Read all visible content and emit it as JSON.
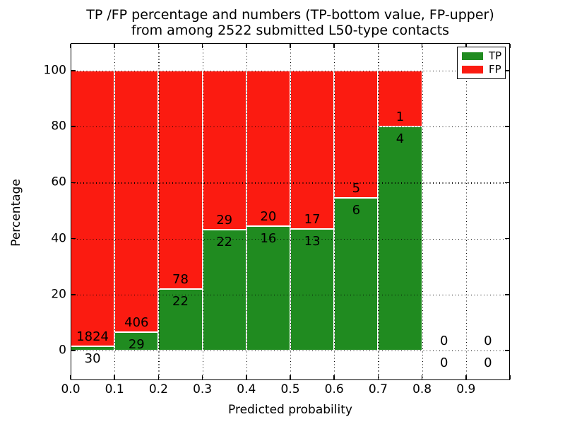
{
  "title": {
    "line1": "TP /FP percentage and numbers (TP-bottom value, FP-upper)",
    "line2": "from among 2522 submitted L50-type contacts"
  },
  "axes": {
    "xlabel": "Predicted probability",
    "ylabel": "Percentage",
    "x_tick_labels": [
      "0.0",
      "0.1",
      "0.2",
      "0.3",
      "0.4",
      "0.5",
      "0.6",
      "0.7",
      "0.8",
      "0.9"
    ],
    "y_tick_labels": [
      "0",
      "20",
      "40",
      "60",
      "80",
      "100"
    ],
    "y_tick_values": [
      0,
      20,
      40,
      60,
      80,
      100
    ],
    "x_range": [
      0.0,
      1.0
    ],
    "y_range_pct": [
      0,
      100
    ],
    "grid_style": "dotted"
  },
  "legend": {
    "position": "upper-right",
    "items": [
      {
        "label": "TP",
        "color": "#208b20"
      },
      {
        "label": "FP",
        "color": "#fb1b11"
      }
    ]
  },
  "colors": {
    "tp_green": "#208b20",
    "fp_red": "#fb1b11",
    "background": "#ffffff",
    "text": "#000000",
    "bar_edge": "#ffffff"
  },
  "chart_data": {
    "type": "bar",
    "stacked": true,
    "normalized_to_percent": 100,
    "title": "TP /FP percentage and numbers (TP-bottom value, FP-upper) from among 2522 submitted L50-type contacts",
    "xlabel": "Predicted probability",
    "ylabel": "Percentage",
    "total_contacts": 2522,
    "bin_width": 0.1,
    "series_order_bottom_to_top": [
      "TP",
      "FP"
    ],
    "bins": [
      {
        "x0": 0.0,
        "x1": 0.1,
        "tp_count": 30,
        "fp_count": 1824,
        "tp_pct": 1.6,
        "fp_pct": 98.4
      },
      {
        "x0": 0.1,
        "x1": 0.2,
        "tp_count": 29,
        "fp_count": 406,
        "tp_pct": 6.7,
        "fp_pct": 93.3
      },
      {
        "x0": 0.2,
        "x1": 0.3,
        "tp_count": 22,
        "fp_count": 78,
        "tp_pct": 22.0,
        "fp_pct": 78.0
      },
      {
        "x0": 0.3,
        "x1": 0.4,
        "tp_count": 22,
        "fp_count": 29,
        "tp_pct": 43.1,
        "fp_pct": 56.9
      },
      {
        "x0": 0.4,
        "x1": 0.5,
        "tp_count": 16,
        "fp_count": 20,
        "tp_pct": 44.4,
        "fp_pct": 55.6
      },
      {
        "x0": 0.5,
        "x1": 0.6,
        "tp_count": 13,
        "fp_count": 17,
        "tp_pct": 43.3,
        "fp_pct": 56.7
      },
      {
        "x0": 0.6,
        "x1": 0.7,
        "tp_count": 6,
        "fp_count": 5,
        "tp_pct": 54.5,
        "fp_pct": 45.5
      },
      {
        "x0": 0.7,
        "x1": 0.8,
        "tp_count": 4,
        "fp_count": 1,
        "tp_pct": 80.0,
        "fp_pct": 20.0
      },
      {
        "x0": 0.8,
        "x1": 0.9,
        "tp_count": 0,
        "fp_count": 0,
        "tp_pct": 0,
        "fp_pct": 0
      },
      {
        "x0": 0.9,
        "x1": 1.0,
        "tp_count": 0,
        "fp_count": 0,
        "tp_pct": 0,
        "fp_pct": 0
      }
    ]
  }
}
